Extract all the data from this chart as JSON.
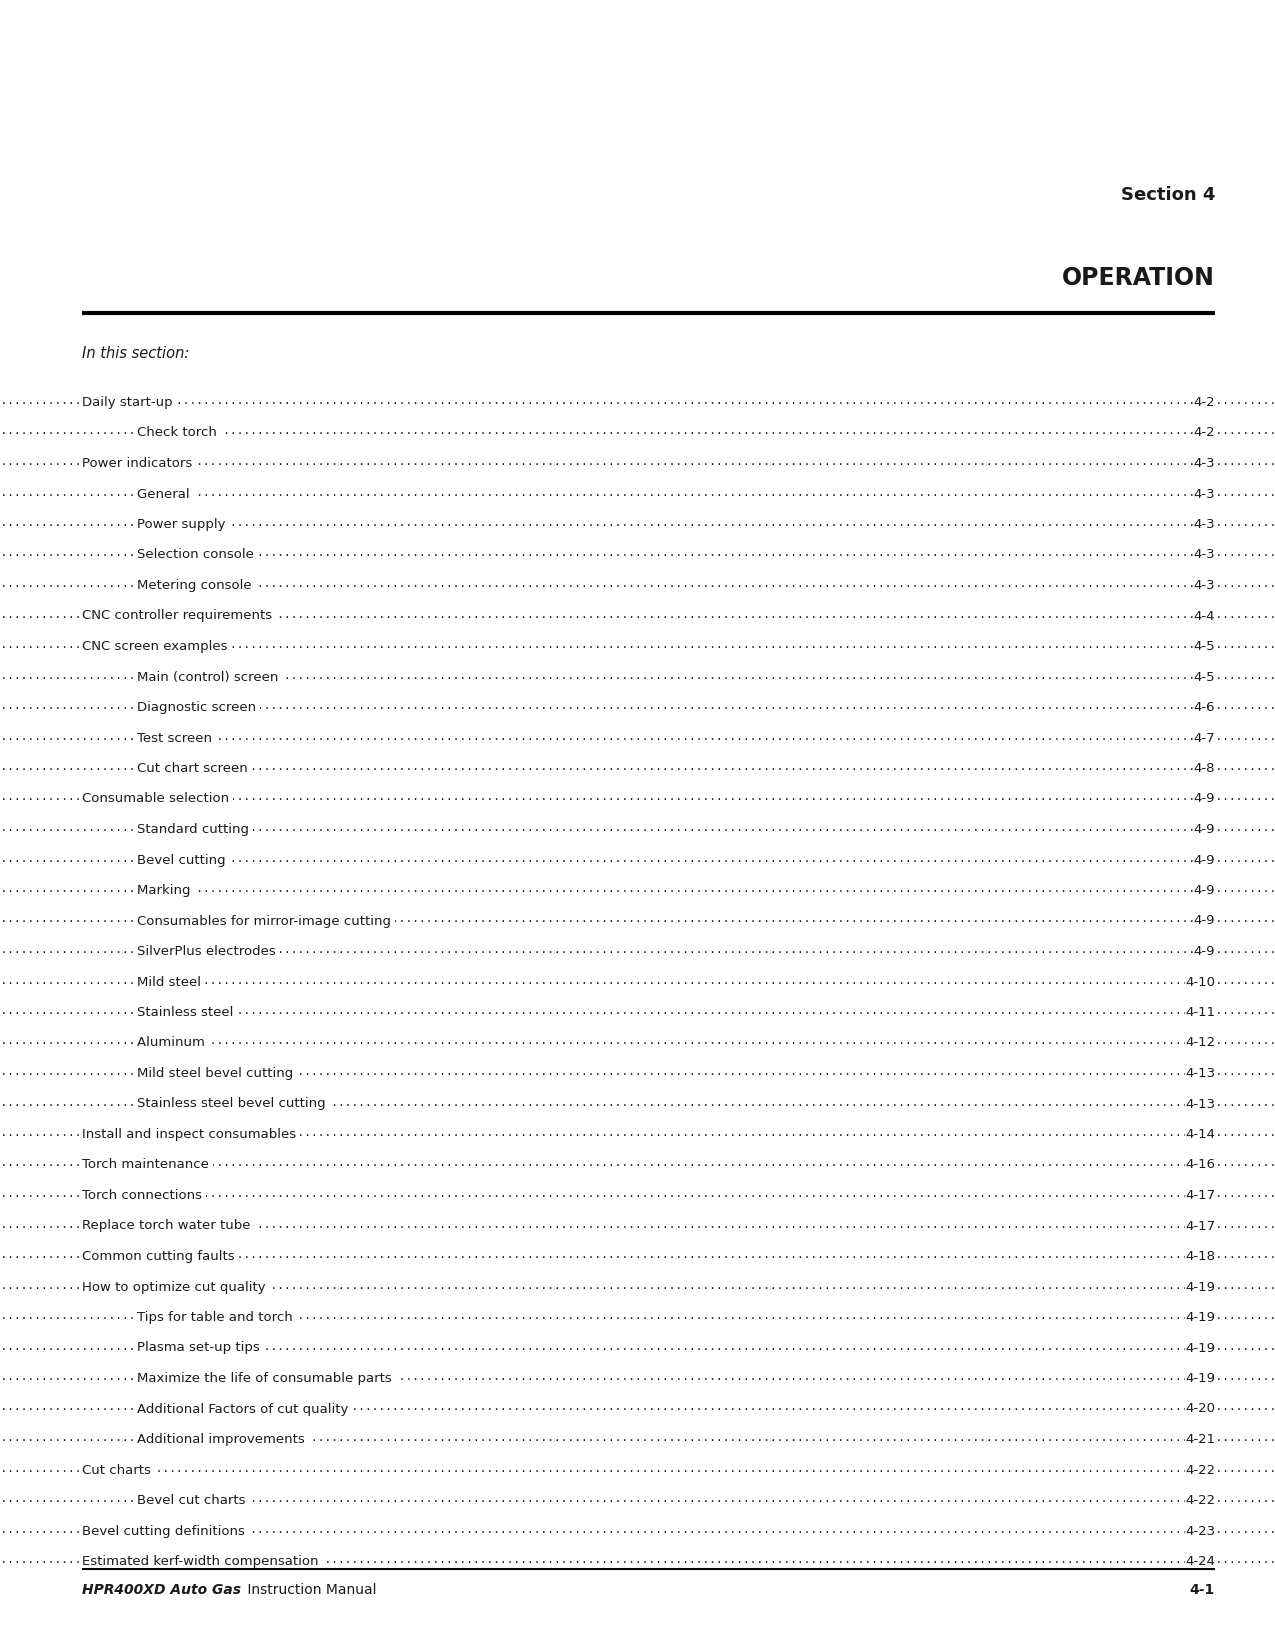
{
  "section_label": "Section 4",
  "title": "OPERATION",
  "subtitle": "In this section:",
  "footer_left_bold": "HPR400XD Auto Gas",
  "footer_left_normal": " Instruction Manual",
  "footer_right": "4-1",
  "toc_entries": [
    {
      "text": "Daily start-up",
      "page": "4-2",
      "indent": 0
    },
    {
      "text": "Check torch",
      "page": "4-2",
      "indent": 1
    },
    {
      "text": "Power indicators",
      "page": "4-3",
      "indent": 0
    },
    {
      "text": "General",
      "page": "4-3",
      "indent": 1
    },
    {
      "text": "Power supply",
      "page": "4-3",
      "indent": 1
    },
    {
      "text": "Selection console",
      "page": "4-3",
      "indent": 1
    },
    {
      "text": "Metering console",
      "page": "4-3",
      "indent": 1
    },
    {
      "text": "CNC controller requirements",
      "page": "4-4",
      "indent": 0
    },
    {
      "text": "CNC screen examples",
      "page": "4-5",
      "indent": 0
    },
    {
      "text": "Main (control) screen",
      "page": "4-5",
      "indent": 1
    },
    {
      "text": "Diagnostic screen",
      "page": "4-6",
      "indent": 1
    },
    {
      "text": "Test screen",
      "page": "4-7",
      "indent": 1
    },
    {
      "text": "Cut chart screen",
      "page": "4-8",
      "indent": 1
    },
    {
      "text": "Consumable selection",
      "page": "4-9",
      "indent": 0
    },
    {
      "text": "Standard cutting",
      "page": "4-9",
      "indent": 1
    },
    {
      "text": "Bevel cutting",
      "page": "4-9",
      "indent": 1
    },
    {
      "text": "Marking",
      "page": "4-9",
      "indent": 1
    },
    {
      "text": "Consumables for mirror-image cutting",
      "page": "4-9",
      "indent": 1
    },
    {
      "text": "SilverPlus electrodes",
      "page": "4-9",
      "indent": 1
    },
    {
      "text": "Mild steel",
      "page": "4-10",
      "indent": 1
    },
    {
      "text": "Stainless steel",
      "page": "4-11",
      "indent": 1
    },
    {
      "text": "Aluminum",
      "page": "4-12",
      "indent": 1
    },
    {
      "text": "Mild steel bevel cutting",
      "page": "4-13",
      "indent": 1
    },
    {
      "text": "Stainless steel bevel cutting",
      "page": "4-13",
      "indent": 1
    },
    {
      "text": "Install and inspect consumables",
      "page": "4-14",
      "indent": 0
    },
    {
      "text": "Torch maintenance",
      "page": "4-16",
      "indent": 0
    },
    {
      "text": "Torch connections",
      "page": "4-17",
      "indent": 0
    },
    {
      "text": "Replace torch water tube",
      "page": "4-17",
      "indent": 0
    },
    {
      "text": "Common cutting faults",
      "page": "4-18",
      "indent": 0
    },
    {
      "text": "How to optimize cut quality",
      "page": "4-19",
      "indent": 0
    },
    {
      "text": "Tips for table and torch",
      "page": "4-19",
      "indent": 1
    },
    {
      "text": "Plasma set-up tips",
      "page": "4-19",
      "indent": 1
    },
    {
      "text": "Maximize the life of consumable parts",
      "page": "4-19",
      "indent": 1
    },
    {
      "text": "Additional Factors of cut quality",
      "page": "4-20",
      "indent": 1
    },
    {
      "text": "Additional improvements",
      "page": "4-21",
      "indent": 1
    },
    {
      "text": "Cut charts",
      "page": "4-22",
      "indent": 0
    },
    {
      "text": "Bevel cut charts",
      "page": "4-22",
      "indent": 1
    },
    {
      "text": "Bevel cutting definitions",
      "page": "4-23",
      "indent": 0
    },
    {
      "text": "Estimated kerf-width compensation",
      "page": "4-24",
      "indent": 0
    }
  ],
  "bg_color": "#ffffff",
  "text_color": "#1a1a1a",
  "line_color": "#000000",
  "section_fontsize": 13,
  "title_fontsize": 17,
  "subtitle_fontsize": 10.5,
  "toc_fontsize": 9.5,
  "footer_fontsize": 10
}
